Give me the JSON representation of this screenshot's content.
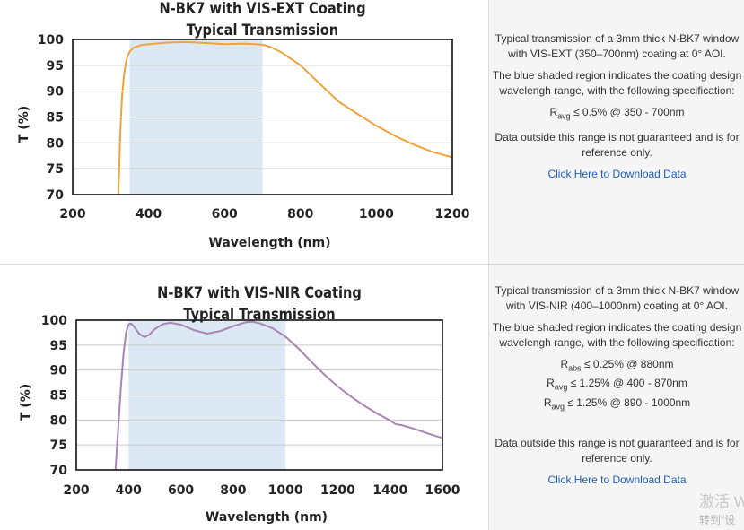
{
  "panels": [
    {
      "chart_data": {
        "type": "line",
        "title": [
          "N-BK7 with VIS-EXT Coating",
          "Typical Transmission"
        ],
        "xlabel": "Wavelength (nm)",
        "ylabel": "T (%)",
        "xlim": [
          200,
          1200
        ],
        "ylim": [
          70,
          100
        ],
        "xticks": [
          200,
          400,
          600,
          800,
          1000,
          1200
        ],
        "yticks": [
          70,
          75,
          80,
          85,
          90,
          95,
          100
        ],
        "shaded_range": [
          350,
          700
        ],
        "line_color": "#f0a33c",
        "shade_color": "#dce9f5",
        "grid": true,
        "series": [
          {
            "x": [
              320,
              323,
              326,
              330,
              335,
              340,
              345,
              350,
              360,
              380,
              400,
              450,
              500,
              550,
              600,
              650,
              700,
              720,
              750,
              800,
              850,
              900,
              950,
              1000,
              1050,
              1100,
              1150,
              1200
            ],
            "values": [
              70,
              76,
              83,
              89,
              93,
              95.5,
              96.8,
              97.6,
              98.4,
              98.9,
              99.1,
              99.4,
              99.5,
              99.3,
              99.1,
              99.2,
              99.0,
              98.6,
              97.5,
              95.0,
              91.5,
              88.0,
              85.6,
              83.3,
              81.3,
              79.6,
              78.2,
              77.2
            ]
          }
        ]
      },
      "description": {
        "intro": "Typical transmission of a 3mm thick N-BK7 window with VIS-EXT (350–700nm) coating at 0° AOI.",
        "shaded_note": "The blue shaded region indicates the coating design wavelengh range, with the following specification:",
        "specs": [
          {
            "symbol": "R",
            "sub": "avg",
            "text": " ≤ 0.5% @ 350 - 700nm"
          }
        ],
        "disclaimer": "Data outside this range is not guaranteed and is for reference only.",
        "download": "Click Here to Download Data"
      }
    },
    {
      "chart_data": {
        "type": "line",
        "title": [
          "N-BK7 with VIS-NIR Coating",
          "Typical Transmission"
        ],
        "xlabel": "Wavelength (nm)",
        "ylabel": "T (%)",
        "xlim": [
          200,
          1600
        ],
        "ylim": [
          70,
          100
        ],
        "xticks": [
          200,
          400,
          600,
          800,
          1000,
          1200,
          1400,
          1600
        ],
        "yticks": [
          70,
          75,
          80,
          85,
          90,
          95,
          100
        ],
        "shaded_range": [
          400,
          1000
        ],
        "line_color": "#a885b5",
        "shade_color": "#dce9f5",
        "grid": true,
        "series": [
          {
            "x": [
              350,
              360,
              370,
              380,
              390,
              400,
              410,
              420,
              440,
              460,
              480,
              500,
              530,
              560,
              600,
              650,
              700,
              750,
              800,
              850,
              870,
              900,
              950,
              1000,
              1050,
              1100,
              1150,
              1200,
              1250,
              1300,
              1350,
              1400,
              1420,
              1450,
              1500,
              1550,
              1600
            ],
            "values": [
              70,
              78,
              86,
              93,
              97.5,
              99.2,
              99.3,
              98.8,
              97.3,
              96.6,
              97.1,
              98.2,
              99.2,
              99.5,
              99.1,
              98.0,
              97.3,
              97.8,
              98.8,
              99.6,
              99.7,
              99.4,
              98.4,
              96.7,
              94.3,
              91.6,
              89.0,
              86.7,
              84.7,
              82.9,
              81.3,
              79.9,
              79.2,
              78.9,
              78.1,
              77.2,
              76.4
            ]
          }
        ]
      },
      "description": {
        "intro": "Typical transmission of a 3mm thick N-BK7 window with VIS-NIR (400–1000nm) coating at 0° AOI.",
        "shaded_note": "The blue shaded region indicates the coating design wavelengh range, with the following specification:",
        "specs": [
          {
            "symbol": "R",
            "sub": "abs",
            "text": " ≤ 0.25% @ 880nm"
          },
          {
            "symbol": "R",
            "sub": "avg",
            "text": " ≤ 1.25% @ 400 - 870nm"
          },
          {
            "symbol": "R",
            "sub": "avg",
            "text": " ≤ 1.25% @ 890 - 1000nm"
          }
        ],
        "disclaimer": "Data outside this range is not guaranteed and is for reference only.",
        "download": "Click Here to Download Data"
      }
    }
  ],
  "watermark": {
    "line1": "激活 W",
    "line2": "转到\"设"
  }
}
